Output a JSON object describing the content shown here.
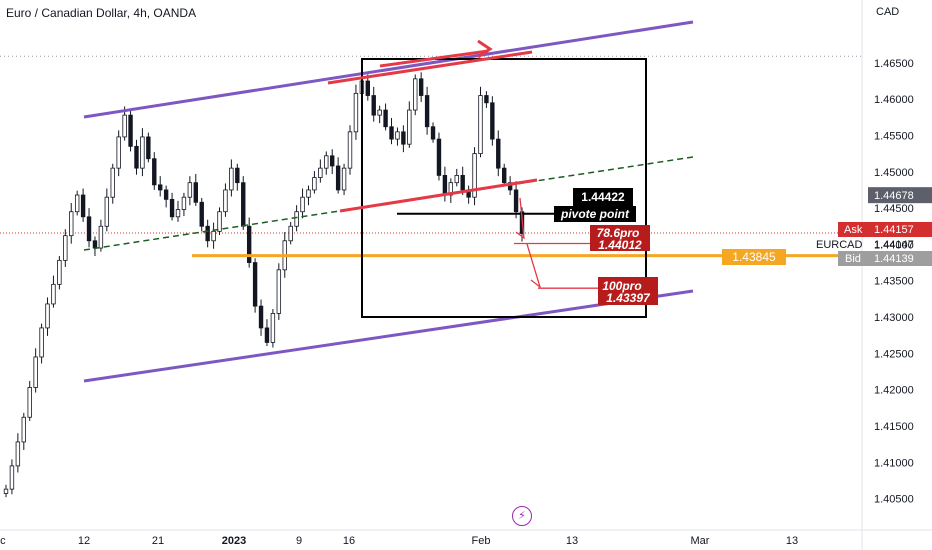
{
  "chart_title": "Euro / Canadian Dollar, 4h, OANDA",
  "currency": "CAD",
  "colors": {
    "channel": "#7e57c2",
    "red": "#e53945",
    "orange": "#f5a623",
    "green_dash": "#1b5e20",
    "ask": "#d32f2f",
    "bid": "#9e9e9e",
    "price_tag": "#5d606b",
    "annotation": "#b71c1c"
  },
  "chart_data": {
    "type": "candlestick",
    "symbol": "EURCAD",
    "timeframe": "4h",
    "y_ticks": [
      "1.40500",
      "1.41000",
      "1.41500",
      "1.42000",
      "1.42500",
      "1.43000",
      "1.43500",
      "1.44000",
      "1.44500",
      "1.45000",
      "1.45500",
      "1.46000",
      "1.46500"
    ],
    "ylim": [
      1.4015,
      1.4709
    ],
    "x_ticks": [
      "ec",
      "12",
      "21",
      "2023",
      "9",
      "16",
      "Feb",
      "13",
      "Mar",
      "13"
    ],
    "price_tags": {
      "last": "1.44678",
      "ask_label": "Ask",
      "ask": "1.44157",
      "symbol_label": "EURCAD",
      "mid": "1.44147",
      "bid_label": "Bid",
      "bid": "1.44139",
      "level": "1.43845"
    },
    "annotations": {
      "pivot_value": "1.44422",
      "pivot_label": "pivote point",
      "fib786_label": "78.6pro",
      "fib786_value": "1.44012",
      "fib100_label": "100pro",
      "fib100_value": "1.43397"
    },
    "levels": {
      "support": 1.43845,
      "pivot": 1.44422,
      "fib786": 1.44012,
      "fib100": 1.43397,
      "prev_high": 1.4659,
      "current_price": 1.44157
    },
    "closes": [
      1.4063,
      1.4095,
      1.4128,
      1.4162,
      1.4203,
      1.4245,
      1.4285,
      1.4318,
      1.4345,
      1.4378,
      1.4412,
      1.4445,
      1.4468,
      1.4438,
      1.4405,
      1.4395,
      1.4425,
      1.4465,
      1.4505,
      1.4548,
      1.4578,
      1.4535,
      1.4505,
      1.4548,
      1.4518,
      1.4482,
      1.4475,
      1.4462,
      1.4438,
      1.4448,
      1.4465,
      1.4485,
      1.4458,
      1.4425,
      1.4405,
      1.4418,
      1.4445,
      1.4475,
      1.4505,
      1.4485,
      1.4425,
      1.4375,
      1.4315,
      1.4285,
      1.4265,
      1.4305,
      1.4365,
      1.4405,
      1.4425,
      1.4445,
      1.4465,
      1.4475,
      1.4492,
      1.4505,
      1.4522,
      1.4508,
      1.4475,
      1.4505,
      1.4555,
      1.4608,
      1.4625,
      1.4605,
      1.4578,
      1.4585,
      1.4562,
      1.4545,
      1.4555,
      1.4538,
      1.4585,
      1.4628,
      1.4605,
      1.4562,
      1.4545,
      1.4495,
      1.4468,
      1.4485,
      1.4495,
      1.4475,
      1.4465,
      1.4525,
      1.4605,
      1.4595,
      1.4545,
      1.4505,
      1.4485,
      1.4475,
      1.4445,
      1.4415
    ]
  }
}
